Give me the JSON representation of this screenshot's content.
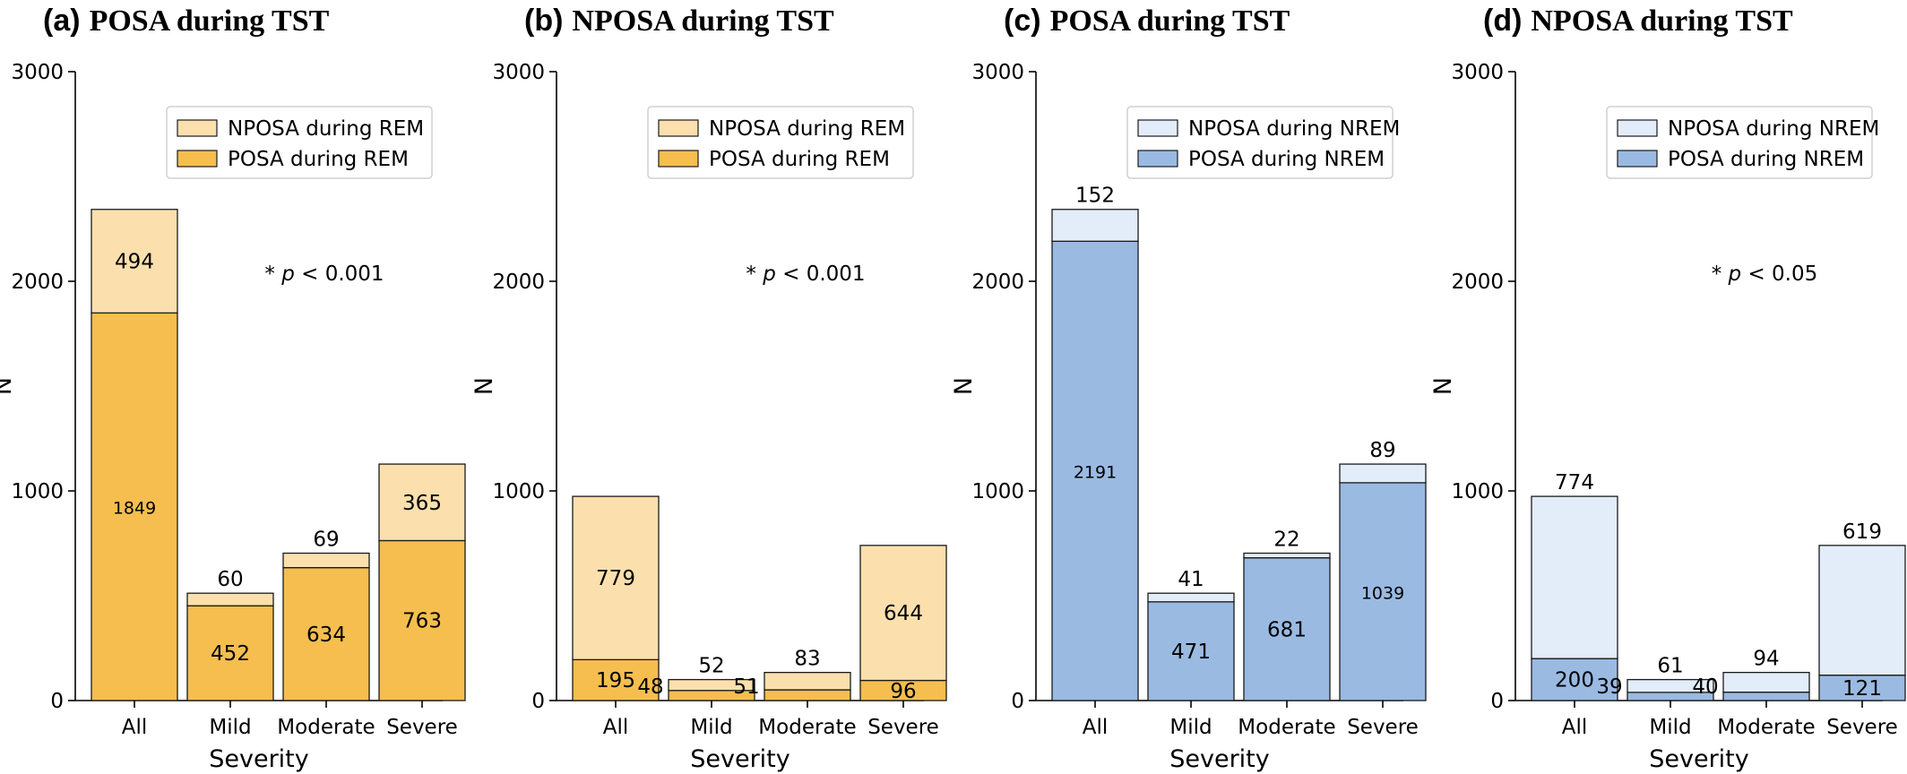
{
  "colors": {
    "rem_dark": "#F5BE4F",
    "rem_light": "#FBE0AE",
    "nrem_dark": "#9ABAE2",
    "nrem_light": "#E3EDF9",
    "edge": "#1a1a1a",
    "legend_border": "#d0d0d0"
  },
  "chart_data": [
    {
      "type": "bar",
      "stacked": true,
      "panel_letter": "(a)",
      "title": "POSA during TST",
      "xlabel": "Severity",
      "ylabel": "N",
      "ylim": [
        0,
        3000
      ],
      "yticks": [
        "0",
        "1000",
        "2000",
        "3000"
      ],
      "categories": [
        "All",
        "Mild",
        "Moderate",
        "Severe"
      ],
      "palette": "rem",
      "series": [
        {
          "name": "POSA during REM",
          "values": [
            1849,
            452,
            634,
            763
          ],
          "labels": [
            "1849",
            "452",
            "634",
            "763"
          ]
        },
        {
          "name": "NPOSA during REM",
          "values": [
            494,
            60,
            69,
            365
          ],
          "labels": [
            "494",
            "60",
            "69",
            "365"
          ]
        }
      ],
      "label_pos": [
        [
          "inside-small",
          "inside",
          "inside",
          "inside"
        ],
        [
          "inside",
          "above",
          "above",
          "inside"
        ]
      ],
      "legend": "upper-right",
      "annotation": {
        "prefix": "* ",
        "italic": "p",
        "suffix": " < 0.001"
      }
    },
    {
      "type": "bar",
      "stacked": true,
      "panel_letter": "(b)",
      "title": "NPOSA during TST",
      "xlabel": "Severity",
      "ylabel": "N",
      "ylim": [
        0,
        3000
      ],
      "yticks": [
        "0",
        "1000",
        "2000",
        "3000"
      ],
      "categories": [
        "All",
        "Mild",
        "Moderate",
        "Severe"
      ],
      "palette": "rem",
      "series": [
        {
          "name": "POSA during REM",
          "values": [
            195,
            48,
            51,
            96
          ],
          "labels": [
            "195",
            "48",
            "51",
            "96"
          ]
        },
        {
          "name": "NPOSA during REM",
          "values": [
            779,
            52,
            83,
            644
          ],
          "labels": [
            "779",
            "52",
            "83",
            "644"
          ]
        }
      ],
      "label_pos": [
        [
          "inside",
          "left",
          "left",
          "inside"
        ],
        [
          "inside",
          "above",
          "above",
          "inside"
        ]
      ],
      "legend": "upper-right",
      "annotation": {
        "prefix": "* ",
        "italic": "p",
        "suffix": " < 0.001"
      }
    },
    {
      "type": "bar",
      "stacked": true,
      "panel_letter": "(c)",
      "title": "POSA during TST",
      "xlabel": "Severity",
      "ylabel": "N",
      "ylim": [
        0,
        3000
      ],
      "yticks": [
        "0",
        "1000",
        "2000",
        "3000"
      ],
      "categories": [
        "All",
        "Mild",
        "Moderate",
        "Severe"
      ],
      "palette": "nrem",
      "series": [
        {
          "name": "POSA during NREM",
          "values": [
            2191,
            471,
            681,
            1039
          ],
          "labels": [
            "2191",
            "471",
            "681",
            "1039"
          ]
        },
        {
          "name": "NPOSA during NREM",
          "values": [
            152,
            41,
            22,
            89
          ],
          "labels": [
            "152",
            "41",
            "22",
            "89"
          ]
        }
      ],
      "label_pos": [
        [
          "inside-small",
          "inside",
          "inside",
          "inside-small"
        ],
        [
          "above",
          "above",
          "above",
          "above"
        ]
      ],
      "legend": "upper-right",
      "annotation": null
    },
    {
      "type": "bar",
      "stacked": true,
      "panel_letter": "(d)",
      "title": "NPOSA during TST",
      "xlabel": "Severity",
      "ylabel": "N",
      "ylim": [
        0,
        3000
      ],
      "yticks": [
        "0",
        "1000",
        "2000",
        "3000"
      ],
      "categories": [
        "All",
        "Mild",
        "Moderate",
        "Severe"
      ],
      "palette": "nrem",
      "series": [
        {
          "name": "POSA during NREM",
          "values": [
            200,
            39,
            40,
            121
          ],
          "labels": [
            "200",
            "39",
            "40",
            "121"
          ]
        },
        {
          "name": "NPOSA during NREM",
          "values": [
            774,
            61,
            94,
            619
          ],
          "labels": [
            "774",
            "61",
            "94",
            "619"
          ]
        }
      ],
      "label_pos": [
        [
          "inside",
          "left",
          "left",
          "inside"
        ],
        [
          "above",
          "above",
          "above",
          "above"
        ]
      ],
      "legend": "upper-right",
      "annotation": {
        "prefix": "* ",
        "italic": "p",
        "suffix": " < 0.05"
      }
    }
  ]
}
